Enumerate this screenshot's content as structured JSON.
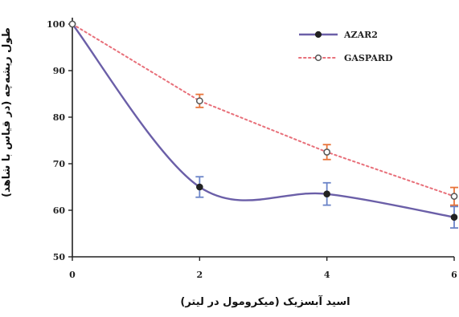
{
  "chart_data": {
    "type": "line",
    "xlabel": "اسید آبسزیک (میکرومول در لیتر)",
    "ylabel": "طول ریشه‌چه (در قیاس با شاهد)",
    "x": [
      0,
      2,
      4,
      6
    ],
    "x_ticks": [
      "0",
      "2",
      "4",
      "6"
    ],
    "y_ticks": [
      "50",
      "60",
      "70",
      "80",
      "90",
      "100"
    ],
    "xlim": [
      0,
      6
    ],
    "ylim": [
      50,
      100
    ],
    "grid": false,
    "legend_position": "top-right",
    "series": [
      {
        "name": "AZAR2",
        "values": [
          100,
          65,
          63.5,
          58.5
        ],
        "errors": [
          0,
          2.2,
          2.4,
          2.3
        ],
        "line_color": "#6b5fa8",
        "error_color": "#6b84c8",
        "line_style": "solid-smooth",
        "marker": "filled-circle"
      },
      {
        "name": "GASPARD",
        "values": [
          100,
          83.5,
          72.5,
          63
        ],
        "errors": [
          0,
          1.4,
          1.6,
          1.9
        ],
        "line_color": "#e8707a",
        "error_color": "#e8743a",
        "line_style": "dotted",
        "marker": "open-circle"
      }
    ]
  }
}
